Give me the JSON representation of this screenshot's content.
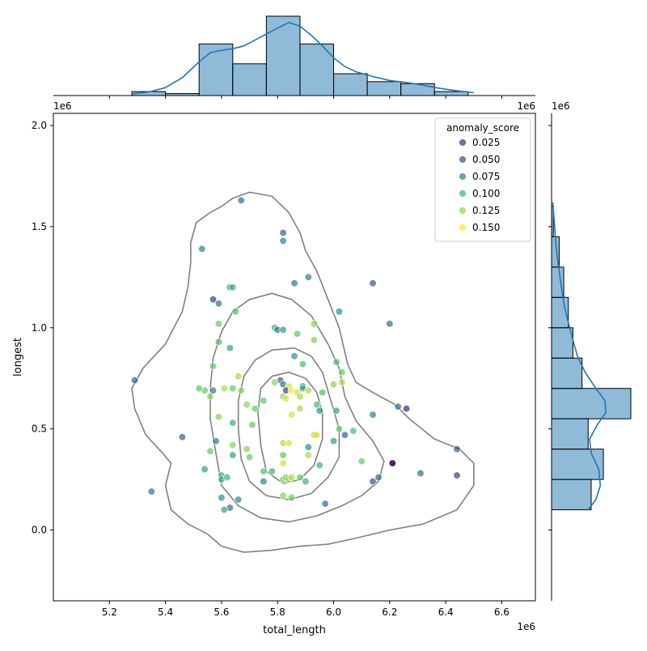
{
  "chart_data": {
    "type": "scatter",
    "xlabel": "total_length",
    "ylabel": "longest",
    "x_offset_text": "1e6",
    "y_offset_text": "1e6",
    "top_marginal_offset_text": "1e6",
    "right_marginal_offset_text": "1e6",
    "xlim": [
      5.0,
      6.72
    ],
    "ylim": [
      -0.35,
      2.06
    ],
    "x_ticks": [
      5.2,
      5.4,
      5.6,
      5.8,
      6.0,
      6.2,
      6.4,
      6.6
    ],
    "x_tick_labels": [
      "5.2",
      "5.4",
      "5.6",
      "5.8",
      "6.0",
      "6.2",
      "6.4",
      "6.6"
    ],
    "y_ticks": [
      0.0,
      0.5,
      1.0,
      1.5,
      2.0
    ],
    "y_tick_labels": [
      "0.0",
      "0.5",
      "1.0",
      "1.5",
      "2.0"
    ],
    "grid": false,
    "legend": {
      "title": "anomaly_score",
      "placement": "top-right",
      "entries": [
        {
          "label": "0.025",
          "color": "#482878"
        },
        {
          "label": "0.050",
          "color": "#3e4a89"
        },
        {
          "label": "0.075",
          "color": "#26828e"
        },
        {
          "label": "0.100",
          "color": "#35b779"
        },
        {
          "label": "0.125",
          "color": "#90d743"
        },
        {
          "label": "0.150",
          "color": "#fde725"
        }
      ]
    },
    "colormap": "viridis",
    "color_range": [
      0.0,
      0.16
    ],
    "point_alpha": 0.7,
    "contour_color": "#808080",
    "contour_levels": [
      [
        [
          5.42,
          0.33
        ],
        [
          5.4,
          0.22
        ],
        [
          5.42,
          0.1
        ],
        [
          5.48,
          0.03
        ],
        [
          5.55,
          -0.02
        ],
        [
          5.6,
          -0.08
        ],
        [
          5.68,
          -0.11
        ],
        [
          5.78,
          -0.1
        ],
        [
          5.88,
          -0.08
        ],
        [
          5.98,
          -0.07
        ],
        [
          6.08,
          -0.04
        ],
        [
          6.2,
          0.0
        ],
        [
          6.32,
          0.03
        ],
        [
          6.44,
          0.1
        ],
        [
          6.5,
          0.22
        ],
        [
          6.5,
          0.33
        ],
        [
          6.45,
          0.4
        ],
        [
          6.36,
          0.45
        ],
        [
          6.27,
          0.55
        ],
        [
          6.22,
          0.62
        ],
        [
          6.14,
          0.68
        ],
        [
          6.08,
          0.73
        ],
        [
          6.05,
          0.82
        ],
        [
          6.02,
          1.0
        ],
        [
          5.98,
          1.14
        ],
        [
          5.94,
          1.28
        ],
        [
          5.9,
          1.38
        ],
        [
          5.88,
          1.47
        ],
        [
          5.84,
          1.57
        ],
        [
          5.78,
          1.65
        ],
        [
          5.7,
          1.67
        ],
        [
          5.64,
          1.64
        ],
        [
          5.6,
          1.6
        ],
        [
          5.56,
          1.57
        ],
        [
          5.51,
          1.52
        ],
        [
          5.49,
          1.42
        ],
        [
          5.49,
          1.32
        ],
        [
          5.48,
          1.2
        ],
        [
          5.46,
          1.08
        ],
        [
          5.4,
          0.92
        ],
        [
          5.32,
          0.8
        ],
        [
          5.28,
          0.7
        ],
        [
          5.29,
          0.6
        ],
        [
          5.33,
          0.47
        ],
        [
          5.39,
          0.38
        ],
        [
          5.42,
          0.33
        ]
      ],
      [
        [
          5.58,
          0.38
        ],
        [
          5.6,
          0.22
        ],
        [
          5.66,
          0.12
        ],
        [
          5.74,
          0.06
        ],
        [
          5.84,
          0.04
        ],
        [
          5.94,
          0.07
        ],
        [
          6.03,
          0.12
        ],
        [
          6.1,
          0.17
        ],
        [
          6.16,
          0.24
        ],
        [
          6.18,
          0.34
        ],
        [
          6.14,
          0.44
        ],
        [
          6.08,
          0.54
        ],
        [
          6.04,
          0.66
        ],
        [
          6.02,
          0.8
        ],
        [
          5.98,
          0.92
        ],
        [
          5.92,
          1.06
        ],
        [
          5.85,
          1.14
        ],
        [
          5.78,
          1.17
        ],
        [
          5.7,
          1.14
        ],
        [
          5.64,
          1.08
        ],
        [
          5.6,
          0.98
        ],
        [
          5.57,
          0.85
        ],
        [
          5.56,
          0.7
        ],
        [
          5.56,
          0.55
        ],
        [
          5.58,
          0.38
        ]
      ],
      [
        [
          5.67,
          0.35
        ],
        [
          5.7,
          0.24
        ],
        [
          5.76,
          0.17
        ],
        [
          5.84,
          0.15
        ],
        [
          5.92,
          0.18
        ],
        [
          5.98,
          0.26
        ],
        [
          6.02,
          0.36
        ],
        [
          6.02,
          0.5
        ],
        [
          5.99,
          0.64
        ],
        [
          5.96,
          0.78
        ],
        [
          5.92,
          0.86
        ],
        [
          5.86,
          0.9
        ],
        [
          5.78,
          0.89
        ],
        [
          5.72,
          0.84
        ],
        [
          5.68,
          0.76
        ],
        [
          5.66,
          0.64
        ],
        [
          5.66,
          0.5
        ],
        [
          5.67,
          0.35
        ]
      ],
      [
        [
          5.74,
          0.42
        ],
        [
          5.76,
          0.29
        ],
        [
          5.82,
          0.23
        ],
        [
          5.88,
          0.25
        ],
        [
          5.93,
          0.32
        ],
        [
          5.96,
          0.45
        ],
        [
          5.96,
          0.58
        ],
        [
          5.94,
          0.68
        ],
        [
          5.9,
          0.75
        ],
        [
          5.84,
          0.78
        ],
        [
          5.78,
          0.76
        ],
        [
          5.74,
          0.7
        ],
        [
          5.73,
          0.58
        ],
        [
          5.74,
          0.42
        ]
      ]
    ],
    "points": [
      [
        5.67,
        1.63,
        0.06
      ],
      [
        5.53,
        1.39,
        0.07
      ],
      [
        5.82,
        1.47,
        0.05
      ],
      [
        5.82,
        1.43,
        0.07
      ],
      [
        5.91,
        1.25,
        0.07
      ],
      [
        5.86,
        1.22,
        0.06
      ],
      [
        6.14,
        1.22,
        0.04
      ],
      [
        5.63,
        1.2,
        0.09
      ],
      [
        5.64,
        1.2,
        0.1
      ],
      [
        5.57,
        1.14,
        0.03
      ],
      [
        5.59,
        1.12,
        0.06
      ],
      [
        5.65,
        1.08,
        0.11
      ],
      [
        6.02,
        1.08,
        0.08
      ],
      [
        6.2,
        1.02,
        0.06
      ],
      [
        5.59,
        1.02,
        0.12
      ],
      [
        5.79,
        1.0,
        0.1
      ],
      [
        5.8,
        0.99,
        0.06
      ],
      [
        5.82,
        0.99,
        0.09
      ],
      [
        5.87,
        0.97,
        0.12
      ],
      [
        5.93,
        1.02,
        0.13
      ],
      [
        5.93,
        0.94,
        0.13
      ],
      [
        5.59,
        0.93,
        0.11
      ],
      [
        5.63,
        0.9,
        0.09
      ],
      [
        5.86,
        0.86,
        0.08
      ],
      [
        6.01,
        0.83,
        0.11
      ],
      [
        5.89,
        0.82,
        0.11
      ],
      [
        5.57,
        0.81,
        0.12
      ],
      [
        6.03,
        0.78,
        0.12
      ],
      [
        5.66,
        0.76,
        0.14
      ],
      [
        5.29,
        0.74,
        0.05
      ],
      [
        5.81,
        0.74,
        0.04
      ],
      [
        5.79,
        0.73,
        0.13
      ],
      [
        5.82,
        0.72,
        0.06
      ],
      [
        5.84,
        0.71,
        0.15
      ],
      [
        5.89,
        0.71,
        0.07
      ],
      [
        6.0,
        0.72,
        0.13
      ],
      [
        6.03,
        0.73,
        0.14
      ],
      [
        5.54,
        0.69,
        0.12
      ],
      [
        5.52,
        0.7,
        0.12
      ],
      [
        5.57,
        0.69,
        0.06
      ],
      [
        5.61,
        0.7,
        0.14
      ],
      [
        5.64,
        0.7,
        0.12
      ],
      [
        5.67,
        0.69,
        0.13
      ],
      [
        5.83,
        0.69,
        0.03
      ],
      [
        5.85,
        0.69,
        0.16
      ],
      [
        5.87,
        0.68,
        0.15
      ],
      [
        5.89,
        0.7,
        0.1
      ],
      [
        5.91,
        0.69,
        0.14
      ],
      [
        5.96,
        0.68,
        0.11
      ],
      [
        5.82,
        0.66,
        0.13
      ],
      [
        5.83,
        0.65,
        0.15
      ],
      [
        5.88,
        0.66,
        0.14
      ],
      [
        5.56,
        0.66,
        0.13
      ],
      [
        5.75,
        0.64,
        0.12
      ],
      [
        5.69,
        0.62,
        0.13
      ],
      [
        5.72,
        0.6,
        0.12
      ],
      [
        5.88,
        0.6,
        0.14
      ],
      [
        5.94,
        0.62,
        0.11
      ],
      [
        5.95,
        0.59,
        0.08
      ],
      [
        6.01,
        0.59,
        0.09
      ],
      [
        6.23,
        0.61,
        0.06
      ],
      [
        6.26,
        0.6,
        0.02
      ],
      [
        6.14,
        0.57,
        0.07
      ],
      [
        5.59,
        0.56,
        0.13
      ],
      [
        5.85,
        0.57,
        0.15
      ],
      [
        5.64,
        0.53,
        0.1
      ],
      [
        5.71,
        0.52,
        0.12
      ],
      [
        6.02,
        0.5,
        0.12
      ],
      [
        6.07,
        0.49,
        0.11
      ],
      [
        5.93,
        0.47,
        0.14
      ],
      [
        5.94,
        0.47,
        0.15
      ],
      [
        5.46,
        0.46,
        0.05
      ],
      [
        6.04,
        0.47,
        0.05
      ],
      [
        5.58,
        0.44,
        0.07
      ],
      [
        6.0,
        0.44,
        0.09
      ],
      [
        5.82,
        0.43,
        0.14
      ],
      [
        5.84,
        0.43,
        0.15
      ],
      [
        5.91,
        0.41,
        0.08
      ],
      [
        5.64,
        0.42,
        0.13
      ],
      [
        5.69,
        0.4,
        0.13
      ],
      [
        5.56,
        0.39,
        0.12
      ],
      [
        5.64,
        0.37,
        0.09
      ],
      [
        5.7,
        0.36,
        0.12
      ],
      [
        5.82,
        0.37,
        0.12
      ],
      [
        5.91,
        0.37,
        0.14
      ],
      [
        6.1,
        0.34,
        0.12
      ],
      [
        5.82,
        0.33,
        0.15
      ],
      [
        6.21,
        0.33,
        0.02
      ],
      [
        6.21,
        0.33,
        0.0
      ],
      [
        6.44,
        0.4,
        0.04
      ],
      [
        5.95,
        0.32,
        0.1
      ],
      [
        5.54,
        0.3,
        0.09
      ],
      [
        5.75,
        0.29,
        0.11
      ],
      [
        5.78,
        0.29,
        0.1
      ],
      [
        5.6,
        0.27,
        0.1
      ],
      [
        5.6,
        0.25,
        0.09
      ],
      [
        5.62,
        0.26,
        0.1
      ],
      [
        6.31,
        0.28,
        0.06
      ],
      [
        6.44,
        0.27,
        0.03
      ],
      [
        5.82,
        0.25,
        0.12
      ],
      [
        5.83,
        0.26,
        0.13
      ],
      [
        5.84,
        0.25,
        0.13
      ],
      [
        5.85,
        0.26,
        0.14
      ],
      [
        5.88,
        0.26,
        0.12
      ],
      [
        5.9,
        0.24,
        0.1
      ],
      [
        5.75,
        0.24,
        0.07
      ],
      [
        6.16,
        0.26,
        0.05
      ],
      [
        6.14,
        0.24,
        0.04
      ],
      [
        5.35,
        0.19,
        0.06
      ],
      [
        5.82,
        0.17,
        0.13
      ],
      [
        5.85,
        0.16,
        0.12
      ],
      [
        5.6,
        0.16,
        0.08
      ],
      [
        5.66,
        0.15,
        0.07
      ],
      [
        5.97,
        0.13,
        0.06
      ],
      [
        5.63,
        0.11,
        0.06
      ],
      [
        5.61,
        0.1,
        0.09
      ]
    ],
    "top_marginal": {
      "type": "histogram",
      "bin_edges": [
        5.28,
        5.4,
        5.52,
        5.64,
        5.76,
        5.88,
        6.0,
        6.12,
        6.24,
        6.36,
        6.48
      ],
      "counts": [
        1,
        0.5,
        13,
        8,
        20,
        13,
        5.5,
        3.5,
        3,
        1
      ],
      "kde": [
        [
          5.28,
          0.4
        ],
        [
          5.34,
          0.9
        ],
        [
          5.4,
          2.0
        ],
        [
          5.46,
          4.5
        ],
        [
          5.52,
          8.5
        ],
        [
          5.56,
          10.8
        ],
        [
          5.6,
          11.4
        ],
        [
          5.64,
          11.8
        ],
        [
          5.68,
          12.5
        ],
        [
          5.72,
          14.0
        ],
        [
          5.76,
          15.5
        ],
        [
          5.8,
          17.0
        ],
        [
          5.84,
          18.4
        ],
        [
          5.88,
          17.5
        ],
        [
          5.92,
          15.2
        ],
        [
          5.96,
          12.5
        ],
        [
          6.0,
          9.5
        ],
        [
          6.04,
          7.3
        ],
        [
          6.08,
          6.0
        ],
        [
          6.14,
          4.8
        ],
        [
          6.2,
          3.8
        ],
        [
          6.26,
          3.3
        ],
        [
          6.32,
          2.6
        ],
        [
          6.38,
          1.8
        ],
        [
          6.44,
          1.2
        ],
        [
          6.5,
          0.7
        ]
      ]
    },
    "right_marginal": {
      "type": "histogram",
      "bin_edges": [
        0.1,
        0.25,
        0.4,
        0.55,
        0.7,
        0.85,
        1.0,
        1.15,
        1.3,
        1.45,
        1.6
      ],
      "counts": [
        13,
        17,
        12,
        26,
        10,
        7,
        5.5,
        4,
        2.5,
        0.6
      ],
      "kde": [
        [
          0.1,
          12.0
        ],
        [
          0.15,
          14.5
        ],
        [
          0.22,
          16.0
        ],
        [
          0.3,
          15.5
        ],
        [
          0.38,
          13.0
        ],
        [
          0.45,
          12.5
        ],
        [
          0.52,
          15.0
        ],
        [
          0.58,
          17.8
        ],
        [
          0.64,
          17.5
        ],
        [
          0.7,
          14.5
        ],
        [
          0.78,
          11.0
        ],
        [
          0.86,
          8.5
        ],
        [
          0.94,
          7.0
        ],
        [
          1.02,
          5.6
        ],
        [
          1.1,
          4.3
        ],
        [
          1.2,
          3.2
        ],
        [
          1.3,
          2.3
        ],
        [
          1.4,
          1.5
        ],
        [
          1.5,
          1.0
        ],
        [
          1.58,
          0.6
        ],
        [
          1.62,
          0.4
        ]
      ]
    }
  }
}
